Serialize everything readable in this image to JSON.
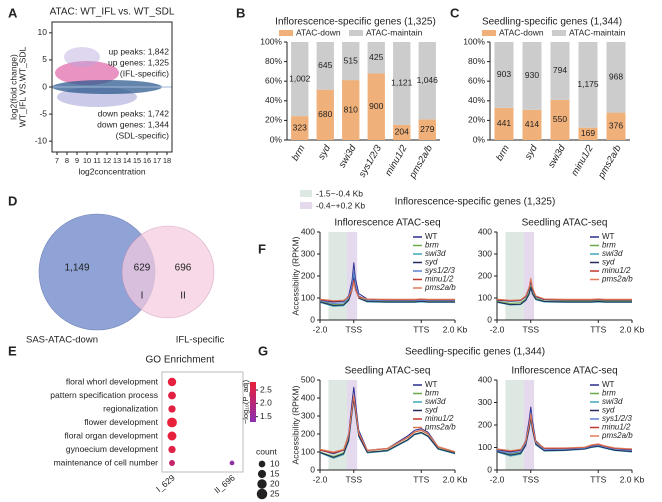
{
  "panel_labels": [
    "A",
    "B",
    "C",
    "D",
    "E",
    "F",
    "G"
  ],
  "groups": [
    {
      "title": "Inflorescence-specific genes (1,325)"
    },
    {
      "title": "Seedling-specific genes (1,344)"
    }
  ],
  "y_axis_label": "Accessibility (RPKM)",
  "bands": [
    {
      "label": "-1.5~-0.4 Kb",
      "x": [
        2.5,
        8
      ],
      "color": "#dde8e2"
    },
    {
      "label": "-0.4~+0.2 Kb",
      "x": [
        8,
        11
      ],
      "color": "#e5d9ee"
    }
  ],
  "chart_data": [
    {
      "type": "scatter",
      "title": "ATAC: WT_IFL vs. WT_SDL",
      "xlabel": "log2concentration",
      "ylabel": [
        "log2(fold change)",
        "WT_IFL VS.WT_SDL"
      ],
      "xlim": [
        6.5,
        18.5
      ],
      "xticks": [
        7,
        8,
        9,
        10,
        11,
        12,
        13,
        14,
        15,
        16,
        17,
        18
      ],
      "ylim": [
        -12,
        12
      ],
      "yticks": [
        -10,
        -5,
        0,
        5,
        10
      ],
      "annotations": [
        {
          "text": "up peaks: 1,842",
          "color": "#222222"
        },
        {
          "text": "up genes: 1,325",
          "color": "#222222"
        },
        {
          "text": "(IFL-specific)",
          "color": "#b8287a"
        },
        {
          "text": "down peaks: 1,742",
          "color": "#222222"
        },
        {
          "text": "down genes: 1,344",
          "color": "#222222"
        },
        {
          "text": "(SDL-specific)",
          "color": "#4e8a3a"
        }
      ]
    },
    {
      "type": "bar",
      "stacking": "percent",
      "title": "Inflorescence-specific genes (1,325)",
      "categories": [
        "brm",
        "syd",
        "swi3d",
        "sys1/2/3",
        "minu1/2",
        "pms2a/b"
      ],
      "series": [
        {
          "name": "ATAC-down",
          "color": "#f0b07a",
          "values": [
            323,
            680,
            810,
            900,
            204,
            279
          ]
        },
        {
          "name": "ATAC-maintain",
          "color": "#cccccc",
          "values": [
            1002,
            645,
            515,
            425,
            1121,
            1046
          ],
          "value_labels": [
            "1,002",
            "645",
            "515",
            "425",
            "1,121",
            "1,046"
          ]
        }
      ],
      "ylim": [
        0,
        100
      ],
      "yticks": [
        {
          "value": 0,
          "label": "0%"
        },
        {
          "value": 20,
          "label": "20%"
        },
        {
          "value": 40,
          "label": "40%"
        },
        {
          "value": 60,
          "label": "60%"
        },
        {
          "value": 80,
          "label": "80%"
        },
        {
          "value": 100,
          "label": "100%"
        }
      ]
    },
    {
      "type": "bar",
      "stacking": "percent",
      "title": "Seedling-specific genes (1,344)",
      "categories": [
        "brm",
        "syd",
        "swi3d",
        "minu1/2",
        "pms2a/b"
      ],
      "series": [
        {
          "name": "ATAC-down",
          "color": "#f0b07a",
          "values": [
            441,
            414,
            550,
            169,
            376
          ]
        },
        {
          "name": "ATAC-maintain",
          "color": "#cccccc",
          "values": [
            903,
            930,
            794,
            1175,
            968
          ],
          "value_labels": [
            "903",
            "930",
            "794",
            "1,175",
            "968"
          ]
        }
      ],
      "ylim": [
        0,
        100
      ],
      "yticks": [
        {
          "value": 0,
          "label": "0%"
        },
        {
          "value": 20,
          "label": "20%"
        },
        {
          "value": 40,
          "label": "40%"
        },
        {
          "value": 60,
          "label": "60%"
        },
        {
          "value": 80,
          "label": "80%"
        },
        {
          "value": 100,
          "label": "100%"
        }
      ]
    },
    {
      "type": "venn",
      "sets": [
        {
          "name": "SAS-ATAC-down",
          "color": "#8fa3d6"
        },
        {
          "name": "IFL-specific",
          "color": "#f4cbe0"
        }
      ],
      "regions": [
        {
          "value": 1149,
          "value_label": "1,149"
        },
        {
          "value": 629,
          "name": "I"
        },
        {
          "value": 696,
          "name": "II"
        }
      ]
    },
    {
      "type": "dot",
      "title": "GO Enrichment",
      "categories": [
        "floral whorl development",
        "pattern specification process",
        "regionalization",
        "flower development",
        "floral organ development",
        "gynoecium development",
        "maintenance of cell number"
      ],
      "columns": [
        {
          "name": "I_629",
          "counts": [
            16,
            14,
            12,
            22,
            18,
            12,
            8
          ],
          "values": [
            2.75,
            2.7,
            2.7,
            2.8,
            2.75,
            2.65,
            2.2
          ]
        },
        {
          "name": "II_696",
          "counts": [
            null,
            null,
            null,
            null,
            null,
            null,
            5
          ],
          "values": [
            null,
            null,
            null,
            null,
            null,
            null,
            1.4
          ]
        }
      ],
      "color_title": "−log₁₀(P_adj)",
      "clim": [
        1.3,
        2.8
      ],
      "colormap": [
        "#8a2fb0",
        "#e8203a"
      ],
      "cticks": [
        1.5,
        {
          "value": 2,
          "label": "2.0"
        },
        2.5
      ],
      "size_title": "count",
      "size_legend": [
        10,
        15,
        20,
        25
      ]
    },
    {
      "type": "line",
      "title": "Inflorescence ATAC-seq",
      "x": [
        0,
        4,
        7,
        8.5,
        9.5,
        10,
        10.5,
        11.5,
        14,
        20,
        26,
        28,
        30,
        32,
        35,
        40
      ],
      "xlim": [
        0,
        40
      ],
      "xticks": [
        {
          "value": 0,
          "label": "-2.0"
        },
        {
          "value": 10,
          "label": "TSS"
        },
        {
          "value": 30,
          "label": "TTS"
        },
        {
          "value": 40,
          "label": "2.0 Kb"
        }
      ],
      "ylim": [
        0,
        400
      ],
      "yticks": [
        0,
        100,
        200,
        300,
        400
      ],
      "series": [
        {
          "name": "WT",
          "color": "#2b2f8f",
          "values": [
            90,
            82,
            85,
            110,
            180,
            260,
            190,
            120,
            95,
            90,
            90,
            90,
            92,
            90,
            90,
            90
          ]
        },
        {
          "name": "brm",
          "color": "#6aa84f",
          "values": [
            85,
            70,
            72,
            95,
            150,
            215,
            160,
            105,
            88,
            85,
            85,
            85,
            88,
            85,
            85,
            85
          ]
        },
        {
          "name": "swi3d",
          "color": "#3fa7b5",
          "values": [
            80,
            62,
            65,
            88,
            140,
            200,
            150,
            100,
            82,
            80,
            80,
            80,
            82,
            80,
            80,
            80
          ]
        },
        {
          "name": "syd",
          "color": "#222a5c",
          "values": [
            82,
            66,
            68,
            90,
            135,
            190,
            145,
            98,
            84,
            82,
            82,
            82,
            85,
            82,
            82,
            82
          ]
        },
        {
          "name": "sys1/2/3",
          "color": "#5b7fd1",
          "values": [
            88,
            75,
            78,
            100,
            160,
            220,
            165,
            110,
            90,
            88,
            88,
            88,
            90,
            88,
            88,
            88
          ]
        },
        {
          "name": "minu1/2",
          "color": "#c0392b",
          "values": [
            92,
            85,
            88,
            105,
            140,
            180,
            140,
            105,
            95,
            92,
            92,
            92,
            94,
            92,
            92,
            92
          ]
        },
        {
          "name": "pms2a/b",
          "color": "#e07b5a",
          "values": [
            95,
            88,
            90,
            105,
            135,
            170,
            135,
            102,
            96,
            94,
            94,
            94,
            96,
            94,
            94,
            94
          ]
        }
      ]
    },
    {
      "type": "line",
      "title": "Seedling ATAC-seq",
      "x": [
        0,
        4,
        7,
        8.5,
        9.5,
        10,
        10.5,
        11.5,
        14,
        20,
        26,
        28,
        30,
        32,
        35,
        40
      ],
      "xlim": [
        0,
        40
      ],
      "xticks": [
        {
          "value": 0,
          "label": "-2.0"
        },
        {
          "value": 10,
          "label": "TSS"
        },
        {
          "value": 30,
          "label": "TTS"
        },
        {
          "value": 40,
          "label": "2.0 Kb"
        }
      ],
      "ylim": [
        0,
        400
      ],
      "yticks": [
        0,
        100,
        200,
        300,
        400
      ],
      "series": [
        {
          "name": "WT",
          "color": "#2b2f8f",
          "values": [
            90,
            85,
            88,
            105,
            140,
            175,
            140,
            105,
            92,
            90,
            90,
            90,
            92,
            90,
            90,
            90
          ]
        },
        {
          "name": "brm",
          "color": "#6aa84f",
          "values": [
            85,
            75,
            78,
            95,
            125,
            155,
            125,
            98,
            86,
            85,
            85,
            85,
            87,
            85,
            85,
            85
          ]
        },
        {
          "name": "swi3d",
          "color": "#3fa7b5",
          "values": [
            80,
            68,
            70,
            88,
            115,
            145,
            118,
            92,
            82,
            80,
            80,
            80,
            82,
            80,
            80,
            80
          ]
        },
        {
          "name": "syd",
          "color": "#222a5c",
          "values": [
            82,
            70,
            72,
            90,
            118,
            148,
            120,
            94,
            84,
            82,
            82,
            82,
            84,
            82,
            82,
            82
          ]
        },
        {
          "name": "minu1/2",
          "color": "#c0392b",
          "values": [
            92,
            88,
            90,
            108,
            145,
            185,
            145,
            108,
            94,
            92,
            92,
            92,
            94,
            92,
            92,
            92
          ]
        },
        {
          "name": "pms2a/b",
          "color": "#e07b5a",
          "values": [
            95,
            90,
            92,
            110,
            150,
            190,
            150,
            110,
            96,
            94,
            94,
            94,
            96,
            94,
            94,
            94
          ]
        }
      ]
    },
    {
      "type": "line",
      "title": "Seedling ATAC-seq",
      "x": [
        0,
        4,
        7,
        8.5,
        9.5,
        10,
        10.5,
        11.5,
        14,
        20,
        26,
        28,
        30,
        32,
        35,
        40
      ],
      "xlim": [
        0,
        40
      ],
      "xticks": [
        {
          "value": 0,
          "label": "-2.0"
        },
        {
          "value": 10,
          "label": "TSS"
        },
        {
          "value": 30,
          "label": "TTS"
        },
        {
          "value": 40,
          "label": "2.0 Kb"
        }
      ],
      "ylim": [
        0,
        500
      ],
      "yticks": [
        0,
        100,
        200,
        300,
        400,
        500
      ],
      "series": [
        {
          "name": "WT",
          "color": "#2b2f8f",
          "values": [
            110,
            90,
            110,
            200,
            380,
            460,
            380,
            220,
            110,
            120,
            190,
            220,
            230,
            210,
            130,
            100
          ]
        },
        {
          "name": "brm",
          "color": "#6aa84f",
          "values": [
            100,
            75,
            95,
            170,
            330,
            400,
            330,
            190,
            100,
            110,
            170,
            200,
            210,
            190,
            120,
            95
          ]
        },
        {
          "name": "swi3d",
          "color": "#3fa7b5",
          "values": [
            95,
            65,
            85,
            160,
            320,
            390,
            320,
            185,
            95,
            105,
            165,
            195,
            205,
            185,
            115,
            90
          ]
        },
        {
          "name": "syd",
          "color": "#222a5c",
          "values": [
            98,
            70,
            90,
            165,
            325,
            395,
            325,
            188,
            98,
            108,
            168,
            198,
            208,
            188,
            118,
            92
          ]
        },
        {
          "name": "minu1/2",
          "color": "#c0392b",
          "values": [
            110,
            95,
            110,
            190,
            340,
            410,
            340,
            200,
            108,
            118,
            180,
            210,
            220,
            200,
            128,
            100
          ]
        },
        {
          "name": "pms2a/b",
          "color": "#e07b5a",
          "values": [
            115,
            100,
            115,
            195,
            345,
            415,
            345,
            205,
            110,
            120,
            182,
            212,
            222,
            202,
            130,
            102
          ]
        }
      ]
    },
    {
      "type": "line",
      "title": "Inflorescence ATAC-seq",
      "x": [
        0,
        4,
        7,
        8.5,
        9.5,
        10,
        10.5,
        11.5,
        14,
        20,
        26,
        28,
        30,
        32,
        35,
        40
      ],
      "xlim": [
        0,
        40
      ],
      "xticks": [
        {
          "value": 0,
          "label": "-2.0"
        },
        {
          "value": 10,
          "label": "TSS"
        },
        {
          "value": 30,
          "label": "TTS"
        },
        {
          "value": 40,
          "label": "2.0 Kb"
        }
      ],
      "ylim": [
        0,
        400
      ],
      "yticks": [
        0,
        100,
        200,
        300,
        400
      ],
      "series": [
        {
          "name": "WT",
          "color": "#2b2f8f",
          "values": [
            90,
            80,
            88,
            130,
            220,
            280,
            220,
            130,
            95,
            95,
            100,
            110,
            115,
            105,
            95,
            90
          ]
        },
        {
          "name": "brm",
          "color": "#6aa84f",
          "values": [
            85,
            70,
            78,
            115,
            190,
            240,
            190,
            118,
            88,
            90,
            95,
            105,
            108,
            100,
            90,
            85
          ]
        },
        {
          "name": "swi3d",
          "color": "#3fa7b5",
          "values": [
            80,
            62,
            70,
            108,
            180,
            230,
            180,
            112,
            84,
            86,
            92,
            100,
            104,
            96,
            86,
            80
          ]
        },
        {
          "name": "syd",
          "color": "#222a5c",
          "values": [
            82,
            66,
            74,
            110,
            182,
            232,
            182,
            114,
            86,
            88,
            94,
            102,
            106,
            98,
            88,
            82
          ]
        },
        {
          "name": "sys1/2/3",
          "color": "#5b7fd1",
          "values": [
            86,
            74,
            82,
            120,
            200,
            255,
            200,
            122,
            90,
            92,
            97,
            106,
            110,
            102,
            92,
            86
          ]
        },
        {
          "name": "minu1/2",
          "color": "#c0392b",
          "values": [
            92,
            84,
            90,
            125,
            195,
            245,
            195,
            125,
            96,
            96,
            100,
            110,
            114,
            105,
            96,
            92
          ]
        },
        {
          "name": "pms2a/b",
          "color": "#e07b5a",
          "values": [
            94,
            86,
            92,
            126,
            198,
            250,
            198,
            126,
            98,
            98,
            102,
            112,
            116,
            107,
            98,
            94
          ]
        }
      ]
    }
  ]
}
